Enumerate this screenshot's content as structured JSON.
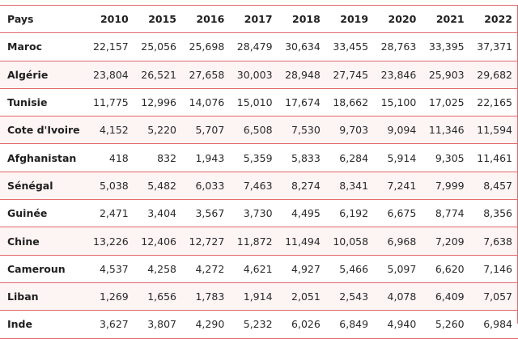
{
  "table": {
    "country_header": "Pays",
    "years": [
      "2010",
      "2015",
      "2016",
      "2017",
      "2018",
      "2019",
      "2020",
      "2021",
      "2022"
    ],
    "rows": [
      {
        "country": "Maroc",
        "values": [
          "22,157",
          "25,056",
          "25,698",
          "28,479",
          "30,634",
          "33,455",
          "28,763",
          "33,395",
          "37,371"
        ]
      },
      {
        "country": "Algérie",
        "values": [
          "23,804",
          "26,521",
          "27,658",
          "30,003",
          "28,948",
          "27,745",
          "23,846",
          "25,903",
          "29,682"
        ]
      },
      {
        "country": "Tunisie",
        "values": [
          "11,775",
          "12,996",
          "14,076",
          "15,010",
          "17,674",
          "18,662",
          "15,100",
          "17,025",
          "22,165"
        ]
      },
      {
        "country": "Cote d'Ivoire",
        "values": [
          "4,152",
          "5,220",
          "5,707",
          "6,508",
          "7,530",
          "9,703",
          "9,094",
          "11,346",
          "11,594"
        ]
      },
      {
        "country": "Afghanistan",
        "values": [
          "418",
          "832",
          "1,943",
          "5,359",
          "5,833",
          "6,284",
          "5,914",
          "9,305",
          "11,461"
        ]
      },
      {
        "country": "Sénégal",
        "values": [
          "5,038",
          "5,482",
          "6,033",
          "7,463",
          "8,274",
          "8,341",
          "7,241",
          "7,999",
          "8,457"
        ]
      },
      {
        "country": "Guinée",
        "values": [
          "2,471",
          "3,404",
          "3,567",
          "3,730",
          "4,495",
          "6,192",
          "6,675",
          "8,774",
          "8,356"
        ]
      },
      {
        "country": "Chine",
        "values": [
          "13,226",
          "12,406",
          "12,727",
          "11,872",
          "11,494",
          "10,058",
          "6,968",
          "7,209",
          "7,638"
        ]
      },
      {
        "country": "Cameroun",
        "values": [
          "4,537",
          "4,258",
          "4,272",
          "4,621",
          "4,927",
          "5,466",
          "5,097",
          "6,620",
          "7,146"
        ]
      },
      {
        "country": "Liban",
        "values": [
          "1,269",
          "1,656",
          "1,783",
          "1,914",
          "2,051",
          "2,543",
          "4,078",
          "6,409",
          "7,057"
        ]
      },
      {
        "country": "Inde",
        "values": [
          "3,627",
          "3,807",
          "4,290",
          "5,232",
          "6,026",
          "6,849",
          "4,940",
          "5,260",
          "6,984"
        ]
      }
    ]
  },
  "colors": {
    "border": "#e06a6a",
    "row_alt": "#fdf4f4"
  }
}
